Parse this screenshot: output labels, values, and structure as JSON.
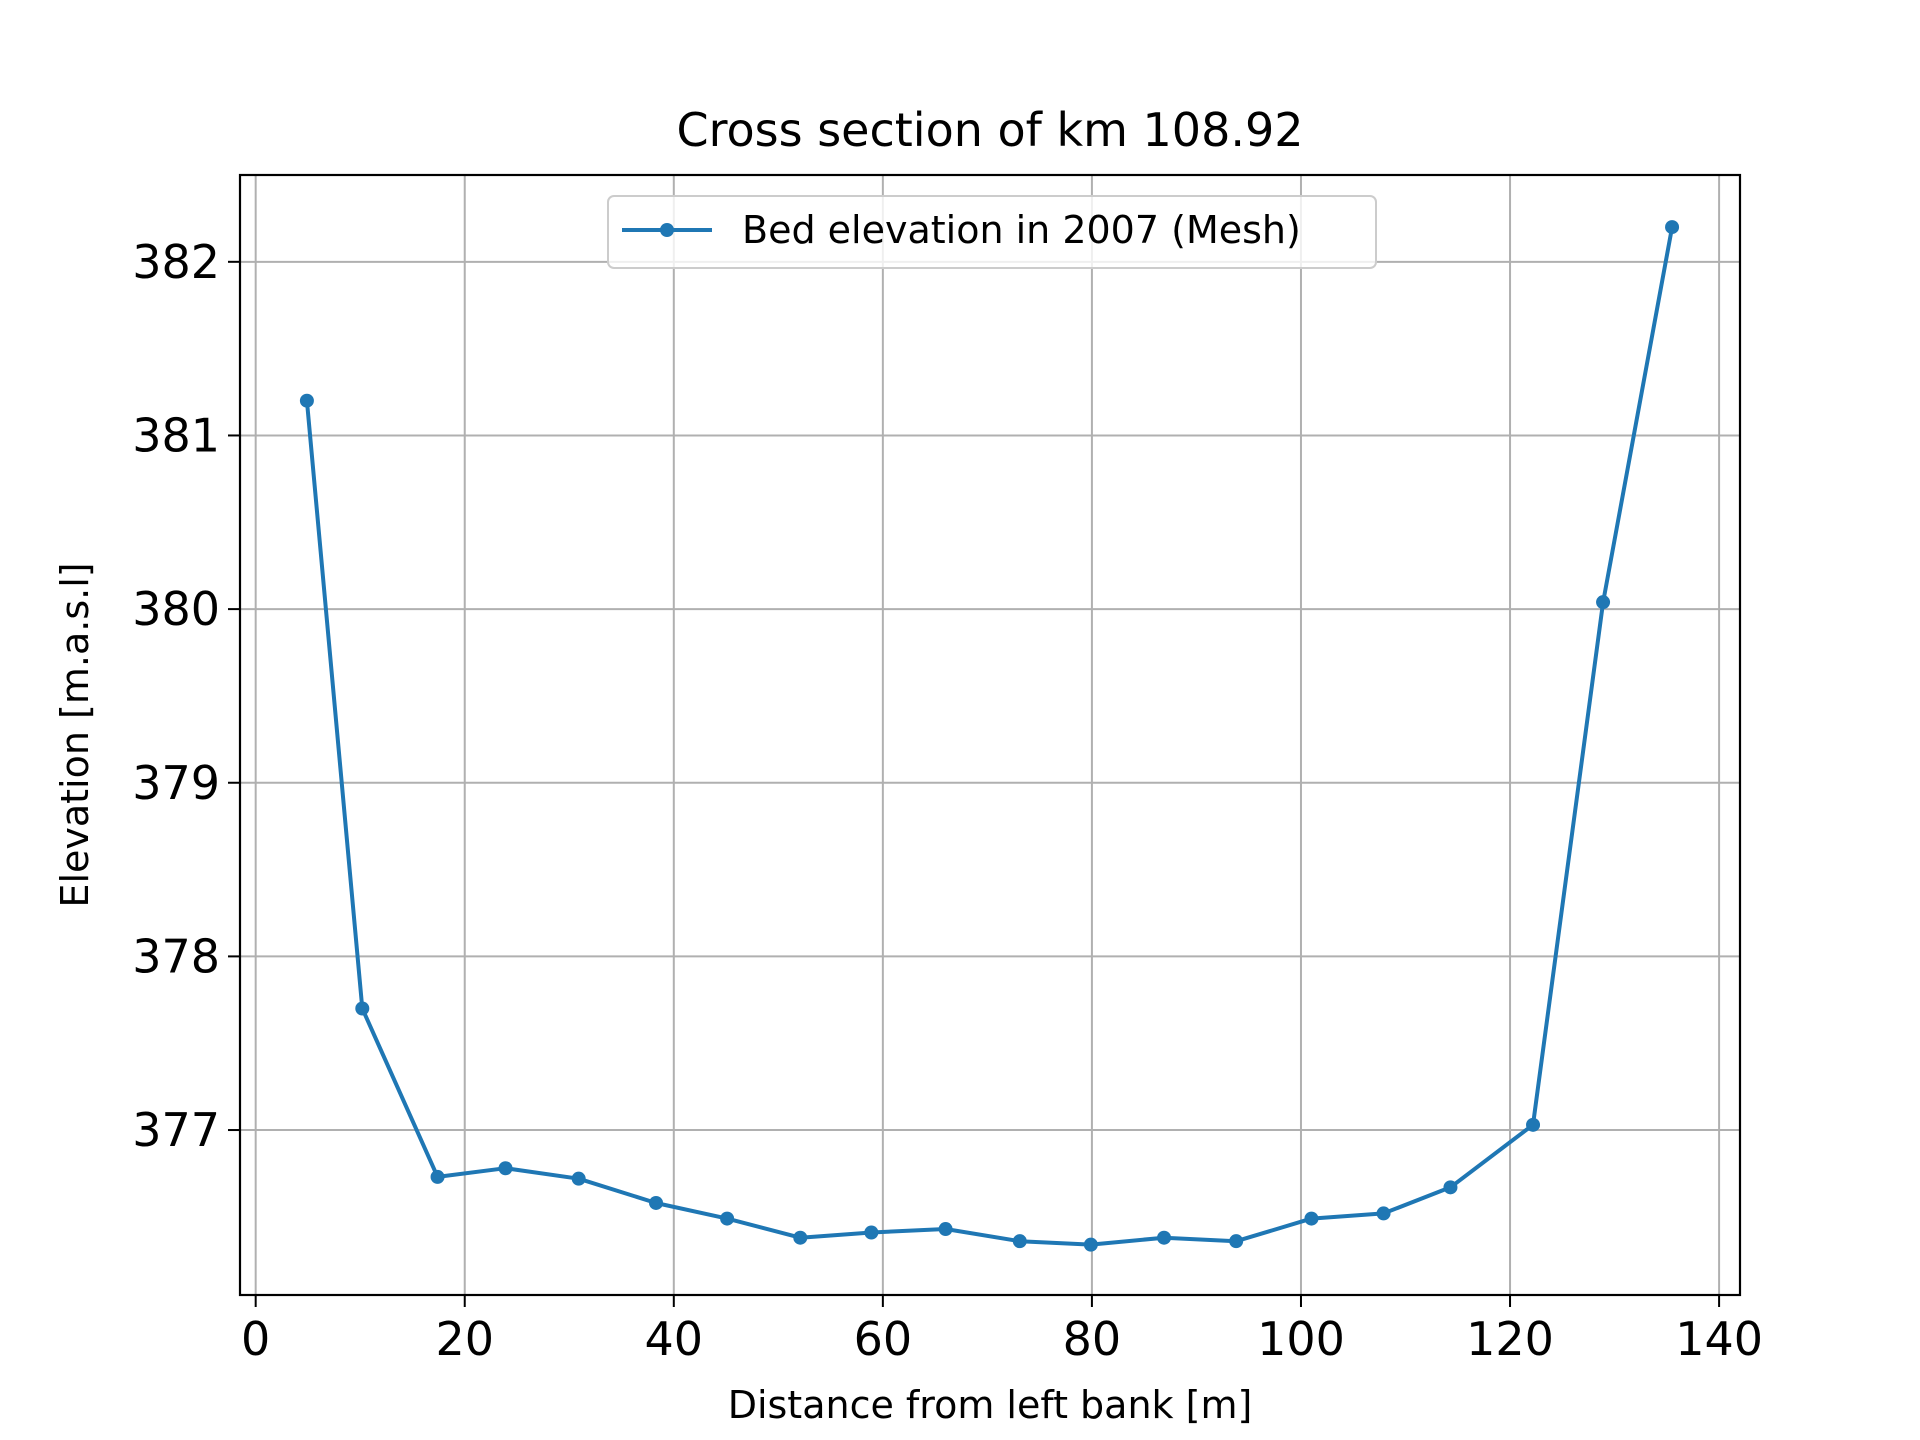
{
  "chart_data": {
    "type": "line",
    "title": "Cross section of km 108.92",
    "xlabel": "Distance from left bank [m]",
    "ylabel": "Elevation [m.a.s.l]",
    "xlim": [
      -1.5,
      142
    ],
    "ylim": [
      376.05,
      382.5
    ],
    "xticks": [
      0,
      20,
      40,
      60,
      80,
      100,
      120,
      140
    ],
    "yticks": [
      377,
      378,
      379,
      380,
      381,
      382
    ],
    "grid": true,
    "legend_position": "upper center",
    "series": [
      {
        "name": "Bed elevation in 2007 (Mesh)",
        "color": "#1f77b4",
        "marker": "circle",
        "x": [
          4.9,
          10.2,
          17.4,
          23.9,
          30.9,
          38.3,
          45.1,
          52.1,
          58.9,
          66.0,
          73.1,
          79.9,
          86.9,
          93.8,
          101.0,
          107.9,
          114.3,
          122.2,
          128.9,
          135.5
        ],
        "y": [
          381.2,
          377.7,
          376.73,
          376.78,
          376.72,
          376.58,
          376.49,
          376.38,
          376.41,
          376.43,
          376.36,
          376.34,
          376.38,
          376.36,
          376.49,
          376.52,
          376.67,
          377.03,
          380.04,
          382.2
        ]
      }
    ]
  }
}
